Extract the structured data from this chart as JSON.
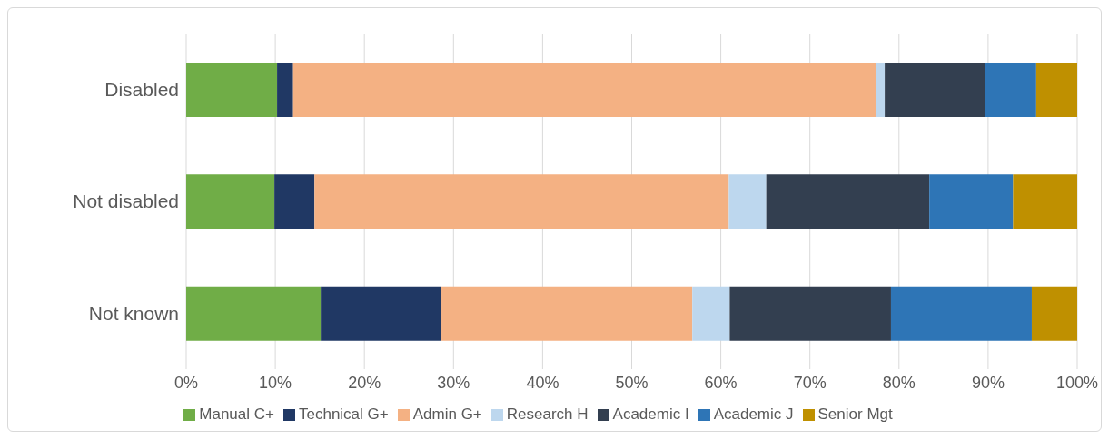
{
  "chart_data": {
    "type": "bar",
    "orientation": "horizontal",
    "stacked": true,
    "categories": [
      "Disabled",
      "Not disabled",
      "Not known"
    ],
    "series": [
      {
        "name": "Manual C+",
        "color": "#70ad47",
        "values": [
          10.2,
          9.9,
          15.1
        ]
      },
      {
        "name": "Technical G+",
        "color": "#203864",
        "values": [
          1.8,
          4.5,
          13.5
        ]
      },
      {
        "name": "Admin G+",
        "color": "#f4b183",
        "values": [
          65.4,
          46.5,
          28.2
        ]
      },
      {
        "name": "Research H",
        "color": "#bdd7ee",
        "values": [
          1.0,
          4.2,
          4.2
        ]
      },
      {
        "name": "Academic I",
        "color": "#333f50",
        "values": [
          11.3,
          18.3,
          18.1
        ]
      },
      {
        "name": "Academic J",
        "color": "#2e75b6",
        "values": [
          5.7,
          9.4,
          15.8
        ]
      },
      {
        "name": "Senior Mgt",
        "color": "#bf9000",
        "values": [
          4.6,
          7.2,
          5.1
        ]
      }
    ],
    "xlim": [
      0,
      100
    ],
    "xticks": [
      {
        "value": 0,
        "label": "0%"
      },
      {
        "value": 10,
        "label": "10%"
      },
      {
        "value": 20,
        "label": "20%"
      },
      {
        "value": 30,
        "label": "30%"
      },
      {
        "value": 40,
        "label": "40%"
      },
      {
        "value": 50,
        "label": "50%"
      },
      {
        "value": 60,
        "label": "60%"
      },
      {
        "value": 70,
        "label": "70%"
      },
      {
        "value": 80,
        "label": "80%"
      },
      {
        "value": 90,
        "label": "90%"
      },
      {
        "value": 100,
        "label": "100%"
      }
    ],
    "grid": "x",
    "legend": "bottom"
  }
}
